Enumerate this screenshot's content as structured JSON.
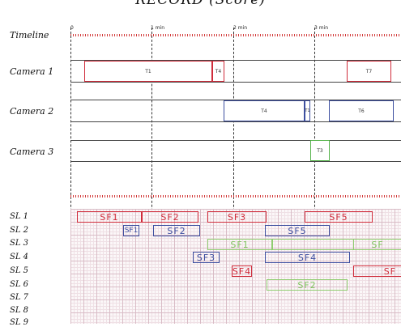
{
  "title": "RECORD (Score)",
  "timeline": {
    "label": "Timeline",
    "ticks": [
      "0",
      "1 min",
      "2 min",
      "3 min"
    ]
  },
  "cameras": [
    {
      "label": "Camera 1",
      "takes": [
        "T1",
        "T4",
        "T7"
      ]
    },
    {
      "label": "Camera 2",
      "takes": [
        "T4",
        "T1",
        "T6"
      ]
    },
    {
      "label": "Camera 3",
      "takes": [
        "T3"
      ]
    }
  ],
  "sl_labels": [
    "SL 1",
    "SL 2",
    "SL 3",
    "SL 4",
    "SL 5",
    "SL 6",
    "SL 7",
    "SL 8",
    "SL 9"
  ],
  "sf_blocks": {
    "sl1": [
      "SF1",
      "SF2",
      "SF3",
      "SF5"
    ],
    "sl2": [
      "SF1",
      "SF2",
      "SF5"
    ],
    "sl3": [
      "SF1",
      "SF"
    ],
    "sl4": [
      "SF3",
      "SF4"
    ],
    "sl5": [
      "SF4",
      "SF"
    ],
    "sl6": [
      "SF2"
    ]
  },
  "colors": {
    "red": "#d02c3b",
    "blue": "#3d4fa0",
    "green": "#55b34a",
    "timeline": "#d23838"
  }
}
